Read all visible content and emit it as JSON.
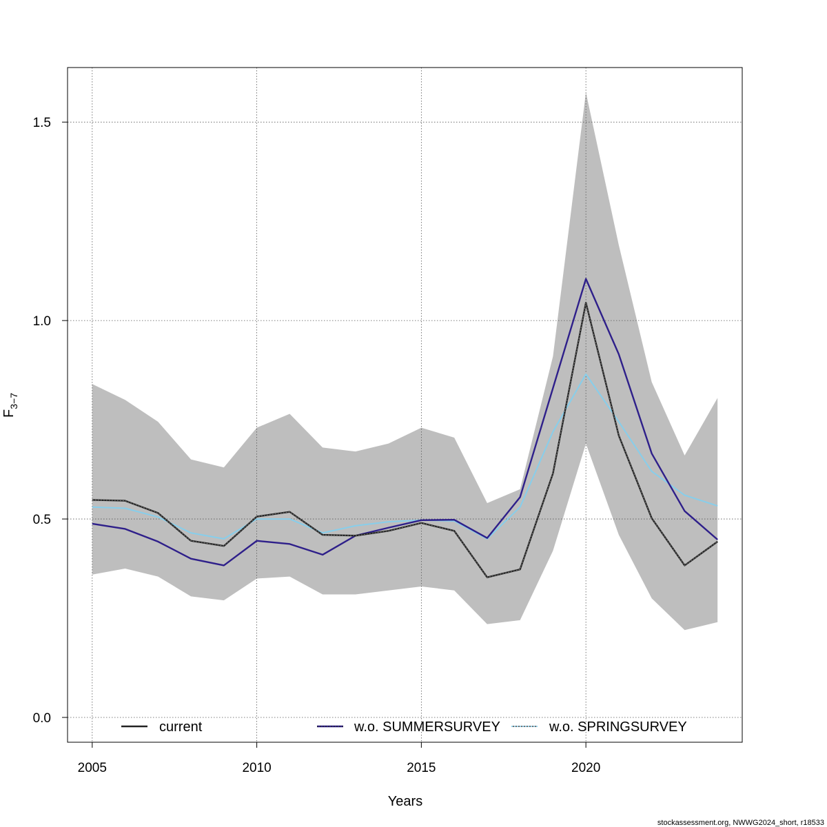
{
  "chart_data": {
    "type": "line",
    "xlabel": "Years",
    "ylabel_main": "F",
    "ylabel_sub": "3−7",
    "xlim": [
      2004.25,
      2024.75
    ],
    "ylim": [
      -0.0625,
      1.6375
    ],
    "x_ticks": [
      2005,
      2010,
      2015,
      2020
    ],
    "y_ticks": [
      0.0,
      0.5,
      1.0,
      1.5
    ],
    "y_tick_labels": [
      "0.0",
      "0.5",
      "1.0",
      "1.5"
    ],
    "grid": true,
    "x": [
      2005,
      2006,
      2007,
      2008,
      2009,
      2010,
      2011,
      2012,
      2013,
      2014,
      2015,
      2016,
      2017,
      2018,
      2019,
      2020,
      2021,
      2022,
      2023,
      2024
    ],
    "confidence_band": {
      "color": "#bebebe",
      "upper": [
        0.84,
        0.8,
        0.745,
        0.65,
        0.63,
        0.73,
        0.765,
        0.68,
        0.67,
        0.69,
        0.73,
        0.705,
        0.54,
        0.575,
        0.91,
        1.575,
        1.19,
        0.845,
        0.66,
        0.805
      ],
      "lower": [
        0.36,
        0.375,
        0.355,
        0.305,
        0.295,
        0.35,
        0.355,
        0.31,
        0.31,
        0.32,
        0.33,
        0.32,
        0.235,
        0.245,
        0.42,
        0.69,
        0.46,
        0.3,
        0.22,
        0.24
      ]
    },
    "series": [
      {
        "name": "current",
        "color": "#222222",
        "values": [
          0.548,
          0.546,
          0.515,
          0.445,
          0.432,
          0.506,
          0.518,
          0.46,
          0.458,
          0.47,
          0.49,
          0.47,
          0.353,
          0.373,
          0.615,
          1.045,
          0.71,
          0.502,
          0.383,
          0.443
        ]
      },
      {
        "name": "w.o. SUMMERSURVEY",
        "color": "#2e1f8a",
        "values": [
          0.488,
          0.475,
          0.443,
          0.4,
          0.383,
          0.445,
          0.437,
          0.41,
          0.458,
          0.478,
          0.497,
          0.498,
          0.452,
          0.555,
          0.83,
          1.105,
          0.915,
          0.665,
          0.52,
          0.448
        ]
      },
      {
        "name": "w.o. SPRINGSURVEY",
        "color": "#87ceeb",
        "values": [
          0.53,
          0.527,
          0.505,
          0.465,
          0.45,
          0.5,
          0.5,
          0.465,
          0.483,
          0.493,
          0.497,
          0.495,
          0.45,
          0.53,
          0.72,
          0.865,
          0.745,
          0.62,
          0.56,
          0.533
        ]
      }
    ],
    "legend": [
      {
        "label": "current",
        "style": "solid",
        "color": "#222222"
      },
      {
        "label": "w.o. SUMMERSURVEY",
        "style": "solid-overdash",
        "color": "#2e1f8a"
      },
      {
        "label": "w.o. SPRINGSURVEY",
        "style": "dotted",
        "color": "#87ceeb"
      }
    ],
    "legend_position": "bottom"
  },
  "footer": "stockassessment.org, NWWG2024_short, r18533"
}
